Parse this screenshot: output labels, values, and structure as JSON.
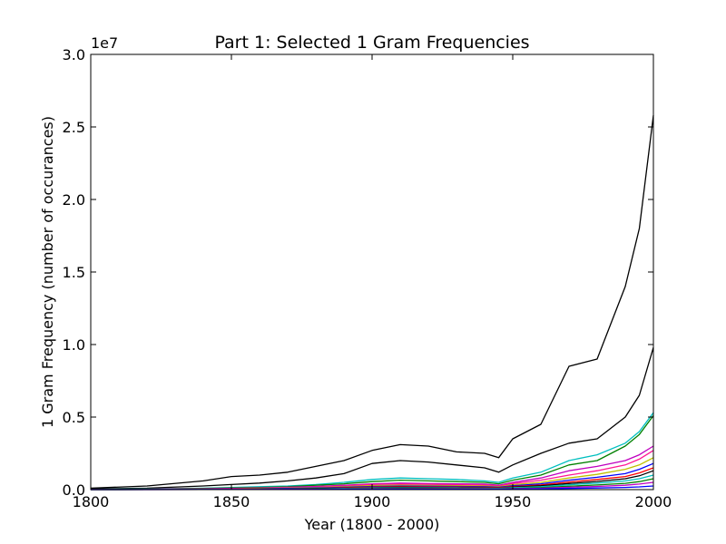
{
  "chart_data": {
    "type": "line",
    "title": "Part 1: Selected 1 Gram Frequencies",
    "xlabel": "Year (1800 - 2000)",
    "ylabel": "1 Gram Frequency (number of occurances)",
    "y_multiplier_label": "1e7",
    "xlim": [
      1800,
      2000
    ],
    "ylim": [
      0,
      30000000
    ],
    "x_ticks": [
      1800,
      1850,
      1900,
      1950,
      2000
    ],
    "x_tick_labels": [
      "1800",
      "1850",
      "1900",
      "1950",
      "2000"
    ],
    "y_ticks": [
      0,
      5000000,
      10000000,
      15000000,
      20000000,
      25000000,
      30000000
    ],
    "y_tick_labels": [
      "0.0",
      "0.5",
      "1.0",
      "1.5",
      "2.0",
      "2.5",
      "3.0"
    ],
    "grid": false,
    "legend": "none",
    "x": [
      1800,
      1820,
      1840,
      1850,
      1860,
      1870,
      1880,
      1890,
      1900,
      1910,
      1920,
      1930,
      1940,
      1945,
      1950,
      1960,
      1970,
      1980,
      1990,
      1995,
      2000
    ],
    "series": [
      {
        "color": "#000000",
        "values": [
          100000,
          250000,
          600000,
          900000,
          1000000,
          1200000,
          1600000,
          2000000,
          2700000,
          3100000,
          3000000,
          2600000,
          2500000,
          2200000,
          3500000,
          4500000,
          8500000,
          9000000,
          14000000,
          18000000,
          25800000
        ]
      },
      {
        "color": "#000000",
        "values": [
          50000,
          100000,
          250000,
          350000,
          450000,
          600000,
          800000,
          1100000,
          1800000,
          2000000,
          1900000,
          1700000,
          1500000,
          1200000,
          1700000,
          2500000,
          3200000,
          3500000,
          5000000,
          6500000,
          9800000
        ]
      },
      {
        "color": "#00bfbf",
        "values": [
          20000,
          50000,
          100000,
          150000,
          200000,
          250000,
          350000,
          500000,
          700000,
          800000,
          750000,
          700000,
          600000,
          500000,
          800000,
          1200000,
          2000000,
          2400000,
          3200000,
          4000000,
          5300000
        ]
      },
      {
        "color": "#008000",
        "values": [
          15000,
          40000,
          80000,
          120000,
          150000,
          200000,
          300000,
          400000,
          550000,
          650000,
          600000,
          550000,
          500000,
          400000,
          650000,
          1000000,
          1700000,
          2000000,
          3000000,
          3800000,
          5100000
        ]
      },
      {
        "color": "#bf00bf",
        "values": [
          10000,
          30000,
          60000,
          90000,
          120000,
          160000,
          220000,
          300000,
          400000,
          450000,
          420000,
          400000,
          380000,
          300000,
          500000,
          800000,
          1300000,
          1600000,
          2000000,
          2400000,
          3000000
        ]
      },
      {
        "color": "#ff1493",
        "values": [
          8000,
          20000,
          50000,
          70000,
          100000,
          130000,
          180000,
          250000,
          350000,
          380000,
          360000,
          340000,
          320000,
          250000,
          420000,
          650000,
          1000000,
          1300000,
          1700000,
          2100000,
          2700000
        ]
      },
      {
        "color": "#bfbf00",
        "values": [
          6000,
          15000,
          40000,
          55000,
          80000,
          100000,
          140000,
          200000,
          280000,
          300000,
          290000,
          270000,
          250000,
          200000,
          330000,
          500000,
          800000,
          1050000,
          1400000,
          1700000,
          2200000
        ]
      },
      {
        "color": "#0000ff",
        "values": [
          5000,
          12000,
          30000,
          45000,
          60000,
          80000,
          110000,
          160000,
          220000,
          240000,
          230000,
          220000,
          200000,
          160000,
          260000,
          400000,
          650000,
          850000,
          1100000,
          1400000,
          1800000
        ]
      },
      {
        "color": "#ff0000",
        "values": [
          4000,
          10000,
          25000,
          35000,
          50000,
          65000,
          90000,
          130000,
          180000,
          200000,
          190000,
          180000,
          160000,
          130000,
          210000,
          320000,
          520000,
          700000,
          900000,
          1150000,
          1500000
        ]
      },
      {
        "color": "#000000",
        "values": [
          3000,
          8000,
          20000,
          28000,
          40000,
          52000,
          72000,
          100000,
          140000,
          160000,
          150000,
          140000,
          130000,
          100000,
          170000,
          260000,
          420000,
          560000,
          750000,
          950000,
          1300000
        ]
      },
      {
        "color": "#00bfbf",
        "values": [
          2000,
          6000,
          15000,
          22000,
          30000,
          40000,
          55000,
          80000,
          110000,
          120000,
          115000,
          110000,
          100000,
          80000,
          130000,
          200000,
          330000,
          450000,
          600000,
          750000,
          1000000
        ]
      },
      {
        "color": "#008000",
        "values": [
          1500,
          4000,
          10000,
          15000,
          20000,
          28000,
          38000,
          55000,
          75000,
          85000,
          80000,
          75000,
          70000,
          55000,
          90000,
          140000,
          230000,
          320000,
          430000,
          550000,
          750000
        ]
      },
      {
        "color": "#bf00bf",
        "values": [
          1000,
          3000,
          7000,
          10000,
          14000,
          19000,
          26000,
          38000,
          52000,
          58000,
          55000,
          52000,
          48000,
          38000,
          62000,
          95000,
          160000,
          220000,
          300000,
          380000,
          500000
        ]
      },
      {
        "color": "#0000ff",
        "values": [
          500,
          1500,
          3500,
          5000,
          7000,
          9500,
          13000,
          19000,
          26000,
          29000,
          27000,
          26000,
          24000,
          19000,
          31000,
          48000,
          80000,
          110000,
          150000,
          190000,
          250000
        ]
      }
    ]
  }
}
